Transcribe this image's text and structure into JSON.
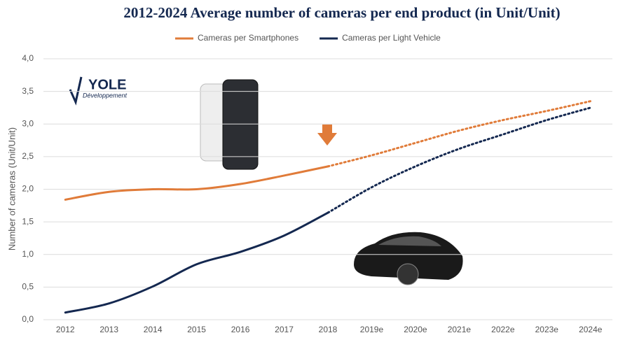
{
  "chart_data": {
    "type": "line",
    "title": "2012-2024 Average number of cameras per end product (in Unit/Unit)",
    "y_label": "Number of cameras (Unit/Unit)",
    "logo": {
      "name": "YOLE",
      "subtitle": "Développement"
    },
    "categories": [
      "2012",
      "2013",
      "2014",
      "2015",
      "2016",
      "2017",
      "2018",
      "2019e",
      "2020e",
      "2021e",
      "2022e",
      "2023e",
      "2024e"
    ],
    "forecast_from_category": "2018",
    "series": [
      {
        "name": "Cameras per Smartphones",
        "color": "#e07b39",
        "values": [
          1.84,
          1.96,
          2.0,
          2.0,
          2.08,
          2.21,
          2.35,
          2.52,
          2.71,
          2.9,
          3.06,
          3.2,
          3.35
        ]
      },
      {
        "name": "Cameras per Light Vehicle",
        "color": "#142850",
        "values": [
          0.11,
          0.25,
          0.51,
          0.85,
          1.04,
          1.29,
          1.64,
          2.03,
          2.35,
          2.62,
          2.84,
          3.06,
          3.25
        ]
      }
    ],
    "ylim": [
      0,
      4
    ],
    "yticks": [
      {
        "value": 0,
        "label": "0,0"
      },
      {
        "value": 0.5,
        "label": "0,5"
      },
      {
        "value": 1,
        "label": "1,0"
      },
      {
        "value": 1.5,
        "label": "1,5"
      },
      {
        "value": 2,
        "label": "2,0"
      },
      {
        "value": 2.5,
        "label": "2,5"
      },
      {
        "value": 3,
        "label": "3,0"
      },
      {
        "value": 3.5,
        "label": "3,5"
      },
      {
        "value": 4,
        "label": "4,0"
      }
    ],
    "grid": true,
    "legend_position": "top"
  }
}
